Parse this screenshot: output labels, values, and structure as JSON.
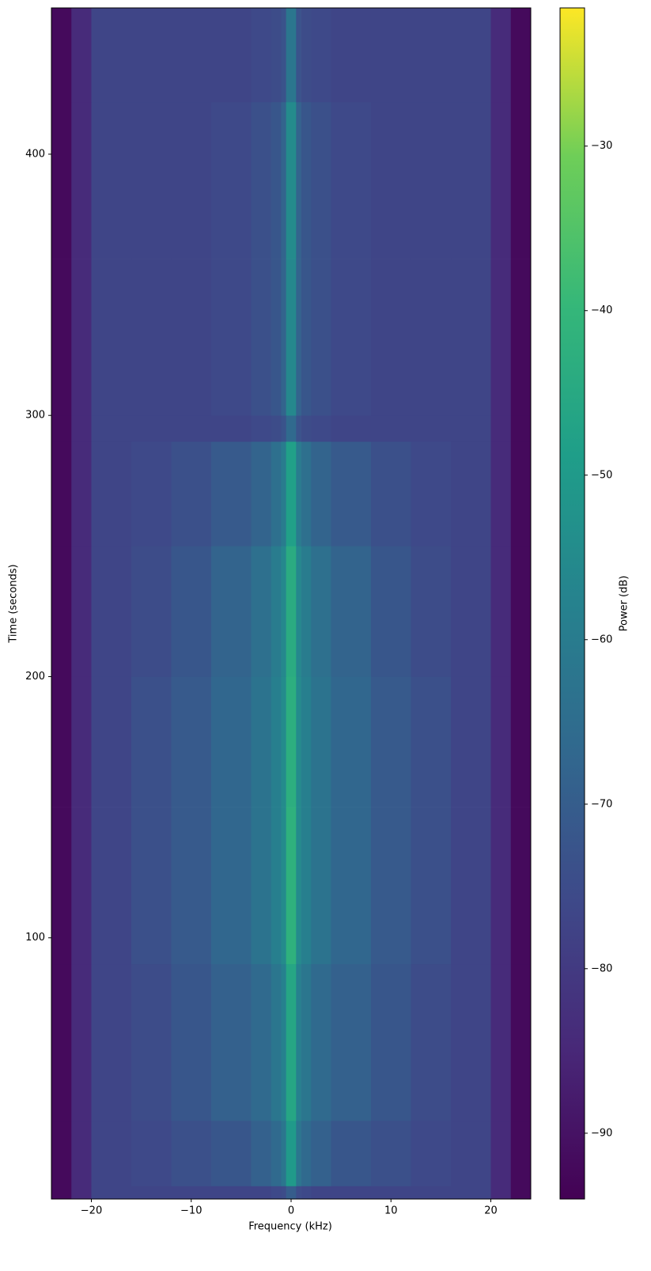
{
  "chart_data": {
    "type": "heatmap",
    "xlabel": "Frequency (kHz)",
    "ylabel": "Time (seconds)",
    "colorbar_label": "Power (dB)",
    "colormap": "viridis",
    "xlim": [
      -24,
      24
    ],
    "ylim": [
      0,
      456
    ],
    "clim": [
      -94,
      -21.6
    ],
    "xticks": [
      {
        "value": -20,
        "label": "−20"
      },
      {
        "value": -10,
        "label": "−10"
      },
      0,
      10,
      20
    ],
    "yticks": [
      100,
      200,
      300,
      400
    ],
    "cticks": [
      {
        "value": -90,
        "label": "−90"
      },
      {
        "value": -80,
        "label": "−80"
      },
      {
        "value": -70,
        "label": "−70"
      },
      {
        "value": -60,
        "label": "−60"
      },
      {
        "value": -50,
        "label": "−50"
      },
      {
        "value": -40,
        "label": "−40"
      },
      {
        "value": -30,
        "label": "−30"
      }
    ],
    "x_edges": [
      -24,
      -22,
      -20,
      -16,
      -12,
      -8,
      -4,
      -2,
      -1,
      -0.5,
      0.5,
      1,
      2,
      4,
      8,
      12,
      16,
      20,
      22,
      24
    ],
    "y_edges": [
      0,
      5,
      30,
      90,
      150,
      200,
      250,
      290,
      300,
      360,
      420,
      456
    ],
    "z": [
      [
        -92,
        -84,
        -77,
        -77,
        -77,
        -77,
        -77,
        -76,
        -75,
        -70,
        -75,
        -76,
        -77,
        -77,
        -77,
        -77,
        -77,
        -84,
        -92
      ],
      [
        -92,
        -84,
        -77,
        -76,
        -74,
        -72,
        -69,
        -66,
        -62,
        -50,
        -62,
        -66,
        -69,
        -72,
        -74,
        -76,
        -77,
        -84,
        -92
      ],
      [
        -92,
        -84,
        -77,
        -75,
        -72,
        -69,
        -66,
        -62,
        -58,
        -46,
        -58,
        -62,
        -66,
        -69,
        -72,
        -75,
        -77,
        -84,
        -92
      ],
      [
        -92,
        -84,
        -77,
        -74,
        -71,
        -67,
        -63,
        -59,
        -55,
        -42,
        -55,
        -59,
        -63,
        -67,
        -71,
        -74,
        -77,
        -84,
        -92
      ],
      [
        -92,
        -84,
        -77,
        -74,
        -71,
        -67,
        -63,
        -59,
        -55,
        -43,
        -55,
        -59,
        -63,
        -67,
        -71,
        -74,
        -77,
        -84,
        -92
      ],
      [
        -92,
        -84,
        -77,
        -75,
        -72,
        -68,
        -64,
        -60,
        -56,
        -44,
        -56,
        -60,
        -64,
        -68,
        -72,
        -75,
        -77,
        -84,
        -92
      ],
      [
        -92,
        -84,
        -77,
        -76,
        -74,
        -71,
        -68,
        -64,
        -60,
        -48,
        -60,
        -64,
        -68,
        -71,
        -74,
        -76,
        -77,
        -84,
        -92
      ],
      [
        -92,
        -84,
        -77,
        -77,
        -77,
        -77,
        -76,
        -75,
        -73,
        -66,
        -73,
        -75,
        -76,
        -77,
        -77,
        -77,
        -77,
        -84,
        -92
      ],
      [
        -92,
        -84,
        -77,
        -77,
        -77,
        -76,
        -74,
        -72,
        -68,
        -56,
        -68,
        -72,
        -74,
        -76,
        -77,
        -77,
        -77,
        -84,
        -92
      ],
      [
        -92,
        -84,
        -77,
        -77,
        -77,
        -76,
        -74,
        -72,
        -68,
        -55,
        -68,
        -72,
        -74,
        -76,
        -77,
        -77,
        -77,
        -84,
        -92
      ],
      [
        -92,
        -84,
        -77,
        -77,
        -77,
        -77,
        -76,
        -75,
        -73,
        -62,
        -73,
        -75,
        -76,
        -77,
        -77,
        -77,
        -77,
        -84,
        -92
      ]
    ]
  }
}
